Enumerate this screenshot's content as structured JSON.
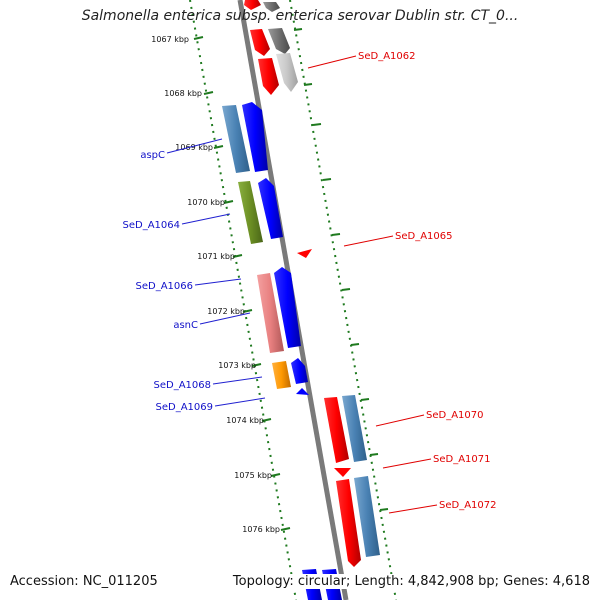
{
  "title": "Salmonella enterica subsp. enterica serovar Dublin str. CT_0...",
  "accession": "Accession: NC_011205",
  "summary": "Topology: circular; Length: 4,842,908 bp; Genes: 4,618",
  "ticks": [
    "1067 kbp",
    "1068 kbp",
    "1069 kbp",
    "1070 kbp",
    "1071 kbp",
    "1072 kbp",
    "1073 kbp",
    "1074 kbp",
    "1075 kbp",
    "1076 kbp"
  ],
  "colors": {
    "backbone": "#808080",
    "tick_green": "#1f7a1f",
    "label_blue": "#1010c8",
    "label_red": "#e00000"
  },
  "left_labels": [
    "aspC",
    "SeD_A1064",
    "SeD_A1066",
    "asnC",
    "SeD_A1068",
    "SeD_A1069"
  ],
  "right_labels": [
    "SeD_A1062",
    "SeD_A1065",
    "SeD_A1070",
    "SeD_A1071",
    "SeD_A1072"
  ]
}
